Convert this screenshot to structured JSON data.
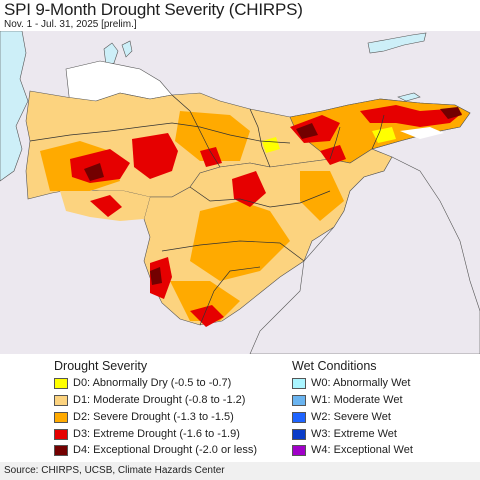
{
  "header": {
    "title": "SPI 9-Month Drought Severity (CHIRPS)",
    "subtitle": "Nov. 1 - Jul. 31, 2025 [prelim.]"
  },
  "colors": {
    "ocean": "#cdeff8",
    "outside_land": "#ece8ef",
    "no_drought": "#ffffff",
    "D0": "#ffff00",
    "D1": "#fcd37f",
    "D2": "#ffaa00",
    "D3": "#e60000",
    "D4": "#730000",
    "W0": "#aaf5ff",
    "W1": "#6ab4f0",
    "W2": "#1e64ff",
    "W3": "#0a3cc8",
    "W4": "#a000c8"
  },
  "legend": {
    "drought_title": "Drought Severity",
    "wet_title": "Wet Conditions",
    "drought_items": [
      {
        "code": "D0",
        "label": "D0: Abnormally Dry (-0.5 to -0.7)"
      },
      {
        "code": "D1",
        "label": "D1: Moderate Drought (-0.8 to -1.2)"
      },
      {
        "code": "D2",
        "label": "D2: Severe Drought (-1.3 to -1.5)"
      },
      {
        "code": "D3",
        "label": "D3: Extreme Drought (-1.6 to -1.9)"
      },
      {
        "code": "D4",
        "label": "D4: Exceptional Drought (-2.0 or less)"
      }
    ],
    "wet_items": [
      {
        "code": "W0",
        "label": "W0: Abnormally Wet"
      },
      {
        "code": "W1",
        "label": "W1: Moderate Wet"
      },
      {
        "code": "W2",
        "label": "W2: Severe Wet"
      },
      {
        "code": "W3",
        "label": "W3: Extreme Wet"
      },
      {
        "code": "W4",
        "label": "W4: Exceptional Wet"
      }
    ]
  },
  "footer": {
    "source": "Source: CHIRPS, UCSB, Climate Hazards Center"
  }
}
